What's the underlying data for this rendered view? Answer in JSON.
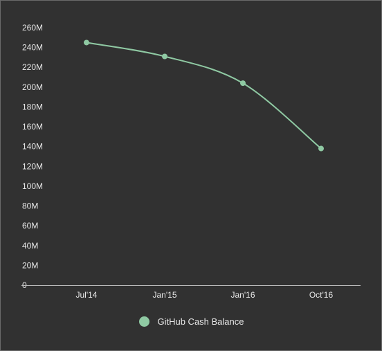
{
  "colors": {
    "background": "#313131",
    "series": "#8fc9a3",
    "axis": "#bdbdbd",
    "text": "#e8e8e8"
  },
  "chart_data": {
    "type": "line",
    "title": "",
    "xlabel": "",
    "ylabel": "",
    "categories": [
      "Jul'14",
      "Jan'15",
      "Jan'16",
      "Oct'16"
    ],
    "series": [
      {
        "name": "GitHub Cash Balance",
        "values": [
          245,
          231,
          204,
          138
        ]
      }
    ],
    "ylim": [
      0,
      260
    ],
    "yticks": [
      0,
      20,
      40,
      60,
      80,
      100,
      120,
      140,
      160,
      180,
      200,
      220,
      240,
      260
    ],
    "ytick_labels": [
      "0",
      "20M",
      "40M",
      "60M",
      "80M",
      "100M",
      "120M",
      "140M",
      "160M",
      "180M",
      "200M",
      "220M",
      "240M",
      "260M"
    ],
    "grid": false,
    "legend": "bottom"
  }
}
